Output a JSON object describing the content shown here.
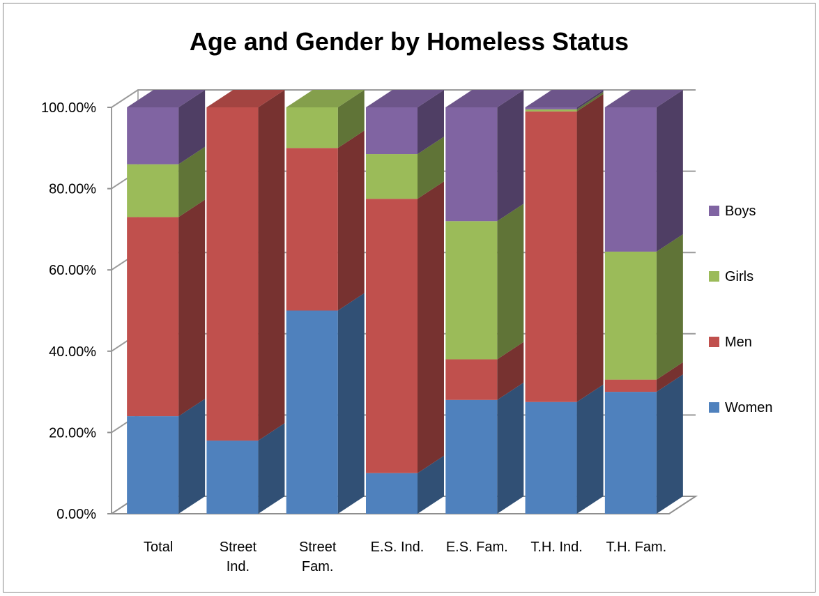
{
  "chart_data": {
    "type": "bar",
    "stacked": true,
    "percent_stacked": true,
    "three_d": true,
    "title": "Age and Gender by Homeless Status",
    "categories": [
      "Total",
      "Street Ind.",
      "Street Fam.",
      "E.S. Ind.",
      "E.S. Fam.",
      "T.H. Ind.",
      "T.H. Fam."
    ],
    "category_labels": [
      [
        "Total"
      ],
      [
        "Street",
        "Ind."
      ],
      [
        "Street",
        "Fam."
      ],
      [
        "E.S. Ind."
      ],
      [
        "E.S. Fam."
      ],
      [
        "T.H. Ind."
      ],
      [
        "T.H. Fam."
      ]
    ],
    "series": [
      {
        "name": "Women",
        "color": "#4F81BD",
        "values": [
          0.24,
          0.18,
          0.5,
          0.1,
          0.28,
          0.275,
          0.3
        ]
      },
      {
        "name": "Men",
        "color": "#C0504D",
        "values": [
          0.49,
          0.82,
          0.4,
          0.675,
          0.1,
          0.715,
          0.03
        ]
      },
      {
        "name": "Girls",
        "color": "#9BBB59",
        "values": [
          0.13,
          0.0,
          0.1,
          0.11,
          0.34,
          0.005,
          0.315
        ]
      },
      {
        "name": "Boys",
        "color": "#8064A2",
        "values": [
          0.14,
          0.0,
          0.0,
          0.115,
          0.28,
          0.005,
          0.355
        ]
      }
    ],
    "ylim": [
      0,
      1
    ],
    "yticks": [
      "0.00%",
      "20.00%",
      "40.00%",
      "60.00%",
      "80.00%",
      "100.00%"
    ],
    "grid": true,
    "legend_position": "right",
    "legend_order": [
      "Boys",
      "Girls",
      "Men",
      "Women"
    ]
  }
}
